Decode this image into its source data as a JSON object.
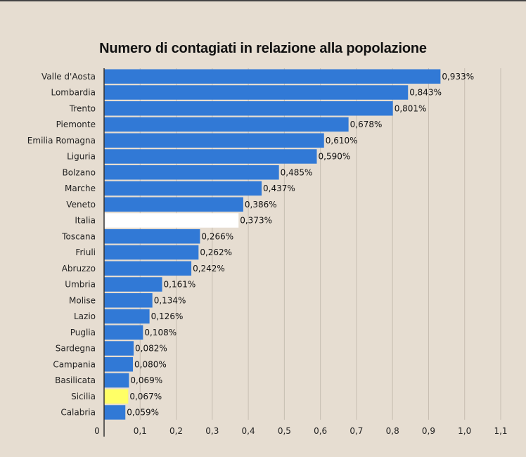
{
  "chart_data": {
    "type": "bar",
    "orientation": "horizontal",
    "title": "Numero di contagiati in relazione alla popolazione",
    "categories": [
      "Valle d'Aosta",
      "Lombardia",
      "Trento",
      "Piemonte",
      "Emilia Romagna",
      "Liguria",
      "Bolzano",
      "Marche",
      "Veneto",
      "Italia",
      "Toscana",
      "Friuli",
      "Abruzzo",
      "Umbria",
      "Molise",
      "Lazio",
      "Puglia",
      "Sardegna",
      "Campania",
      "Basilicata",
      "Sicilia",
      "Calabria"
    ],
    "values": [
      0.933,
      0.843,
      0.801,
      0.678,
      0.61,
      0.59,
      0.485,
      0.437,
      0.386,
      0.373,
      0.266,
      0.262,
      0.242,
      0.161,
      0.134,
      0.126,
      0.108,
      0.082,
      0.08,
      0.069,
      0.067,
      0.059
    ],
    "value_labels": [
      "0,933%",
      "0,843%",
      "0,801%",
      "0,678%",
      "0,610%",
      "0,590%",
      "0,485%",
      "0,437%",
      "0,386%",
      "0,373%",
      "0,266%",
      "0,262%",
      "0,242%",
      "0,161%",
      "0,134%",
      "0,126%",
      "0,108%",
      "0,082%",
      "0,080%",
      "0,069%",
      "0,067%",
      "0,059%"
    ],
    "xlim": [
      0,
      1.1
    ],
    "xticks": [
      0,
      0.1,
      0.2,
      0.3,
      0.4,
      0.5,
      0.6,
      0.7,
      0.8,
      0.9,
      1.0,
      1.1
    ],
    "xtick_labels": [
      "0",
      "0,1",
      "0,2",
      "0,3",
      "0,4",
      "0,5",
      "0,6",
      "0,7",
      "0,8",
      "0,9",
      "1,0",
      "1,1"
    ],
    "grid": "vertical",
    "colors": {
      "bar": "#3179d6",
      "highlight_italia": "#ffffff",
      "highlight_sicilia": "#ffff66",
      "background": "#e6ddd1",
      "grid": "#c6bdb1",
      "axis": "#333333"
    },
    "highlighted": {
      "Italia": "#ffffff",
      "Sicilia": "#ffff66"
    }
  }
}
